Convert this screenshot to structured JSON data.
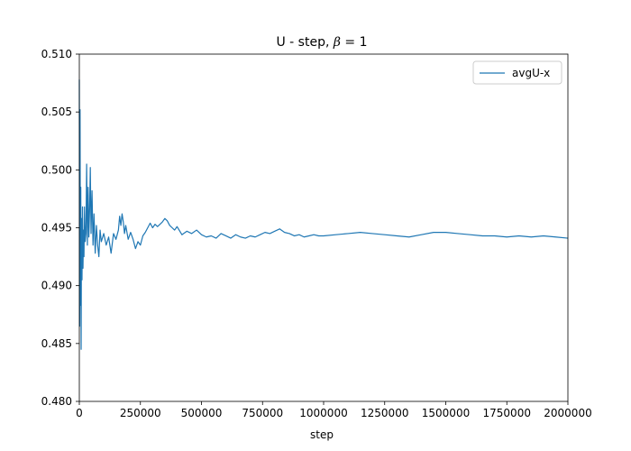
{
  "chart_data": {
    "type": "line",
    "title": {
      "prefix": "U - step, ",
      "beta": "β",
      "suffix": " = 1"
    },
    "xlabel": "step",
    "ylabel": "",
    "xlim": [
      0,
      2000000
    ],
    "ylim": [
      0.48,
      0.51
    ],
    "x_ticks": [
      0,
      250000,
      500000,
      750000,
      1000000,
      1250000,
      1500000,
      1750000,
      2000000
    ],
    "x_tick_labels": [
      "0",
      "250000",
      "500000",
      "750000",
      "1000000",
      "1250000",
      "1500000",
      "1750000",
      "2000000"
    ],
    "y_ticks": [
      0.48,
      0.485,
      0.49,
      0.495,
      0.5,
      0.505,
      0.51
    ],
    "y_tick_labels": [
      "0.480",
      "0.485",
      "0.490",
      "0.495",
      "0.500",
      "0.505",
      "0.510"
    ],
    "grid": false,
    "legend_position": "upper right",
    "series": [
      {
        "name": "avgU-x",
        "color": "#1f77b4",
        "x": [
          0,
          1500,
          3000,
          4500,
          6000,
          7500,
          9000,
          11000,
          13000,
          15000,
          17000,
          19000,
          21000,
          24000,
          27000,
          30000,
          33000,
          36000,
          39000,
          42000,
          45000,
          48000,
          52000,
          56000,
          60000,
          65000,
          70000,
          75000,
          80000,
          85000,
          90000,
          100000,
          110000,
          120000,
          130000,
          140000,
          150000,
          160000,
          165000,
          170000,
          175000,
          180000,
          185000,
          190000,
          200000,
          210000,
          220000,
          230000,
          240000,
          250000,
          260000,
          270000,
          280000,
          290000,
          300000,
          310000,
          320000,
          330000,
          340000,
          350000,
          360000,
          370000,
          380000,
          390000,
          400000,
          420000,
          440000,
          460000,
          480000,
          500000,
          520000,
          540000,
          560000,
          580000,
          600000,
          620000,
          640000,
          660000,
          680000,
          700000,
          720000,
          740000,
          760000,
          780000,
          800000,
          820000,
          840000,
          860000,
          880000,
          900000,
          920000,
          940000,
          960000,
          980000,
          1000000,
          1050000,
          1100000,
          1150000,
          1200000,
          1250000,
          1300000,
          1350000,
          1400000,
          1450000,
          1500000,
          1550000,
          1600000,
          1650000,
          1700000,
          1750000,
          1800000,
          1850000,
          1900000,
          1950000,
          2000000
        ],
        "y": [
          0.5078,
          0.4865,
          0.5052,
          0.4883,
          0.4985,
          0.4845,
          0.4958,
          0.4905,
          0.4968,
          0.4915,
          0.4948,
          0.4925,
          0.4968,
          0.4938,
          0.4945,
          0.5005,
          0.4935,
          0.4985,
          0.4942,
          0.4965,
          0.5002,
          0.4945,
          0.4982,
          0.4935,
          0.4962,
          0.4928,
          0.4952,
          0.4935,
          0.4925,
          0.4948,
          0.4938,
          0.4945,
          0.4935,
          0.4942,
          0.4928,
          0.4945,
          0.494,
          0.4948,
          0.496,
          0.4952,
          0.4962,
          0.4955,
          0.4945,
          0.4952,
          0.494,
          0.4946,
          0.494,
          0.4932,
          0.4938,
          0.4935,
          0.4943,
          0.4946,
          0.495,
          0.4954,
          0.495,
          0.4953,
          0.4951,
          0.4953,
          0.4955,
          0.4958,
          0.4956,
          0.4952,
          0.495,
          0.4948,
          0.4951,
          0.4944,
          0.4947,
          0.4945,
          0.4948,
          0.4944,
          0.4942,
          0.4943,
          0.4941,
          0.4945,
          0.4943,
          0.4941,
          0.4944,
          0.4942,
          0.4941,
          0.4943,
          0.4942,
          0.4944,
          0.4946,
          0.4945,
          0.4947,
          0.4949,
          0.4946,
          0.4945,
          0.4943,
          0.4944,
          0.4942,
          0.4943,
          0.4944,
          0.4943,
          0.4943,
          0.4944,
          0.4945,
          0.4946,
          0.4945,
          0.4944,
          0.4943,
          0.4942,
          0.4944,
          0.4946,
          0.4946,
          0.4945,
          0.4944,
          0.4943,
          0.4943,
          0.4942,
          0.4943,
          0.4942,
          0.4943,
          0.4942,
          0.4941
        ]
      }
    ]
  }
}
